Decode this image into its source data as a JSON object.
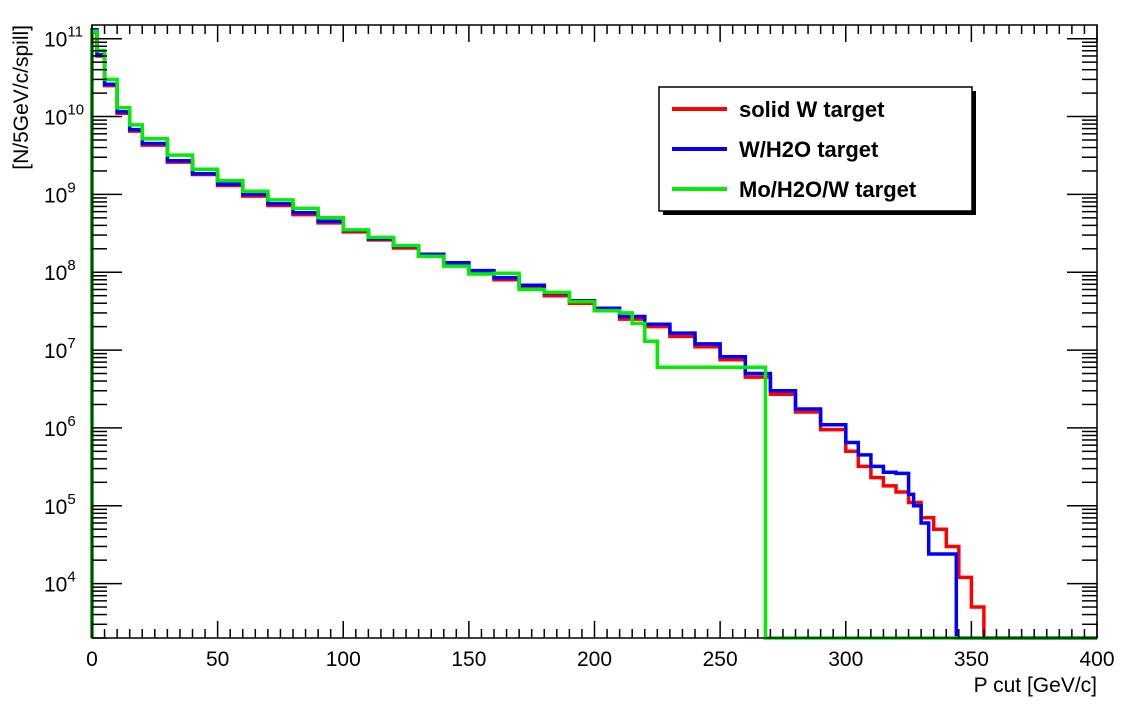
{
  "chart_data": {
    "type": "line",
    "title": "",
    "xlabel": "P cut  [GeV/c]",
    "ylabel": "[N/5GeV/c/spill]",
    "xlim": [
      0,
      400
    ],
    "ylim": [
      2000,
      150000000000
    ],
    "y_scale": "log",
    "grid": false,
    "legend_position": "top-right",
    "x_ticks": [
      0,
      50,
      100,
      150,
      200,
      250,
      300,
      350,
      400
    ],
    "x_tick_labels": [
      "0",
      "50",
      "100",
      "150",
      "200",
      "250",
      "300",
      "350",
      "400"
    ],
    "y_ticks": [
      10000,
      100000,
      1000000,
      10000000,
      100000000,
      1000000000,
      10000000000,
      100000000000
    ],
    "y_tick_labels": [
      {
        "base": "10",
        "exp": "4"
      },
      {
        "base": "10",
        "exp": "5"
      },
      {
        "base": "10",
        "exp": "6"
      },
      {
        "base": "10",
        "exp": "7"
      },
      {
        "base": "10",
        "exp": "8"
      },
      {
        "base": "10",
        "exp": "9"
      },
      {
        "base": "10",
        "exp": "10"
      },
      {
        "base": "10",
        "exp": "11"
      }
    ],
    "series": [
      {
        "name": "solid W target",
        "color": "#ff0000",
        "step": true,
        "x": [
          0,
          2,
          5,
          10,
          15,
          20,
          30,
          40,
          50,
          60,
          70,
          80,
          90,
          100,
          110,
          120,
          130,
          140,
          150,
          160,
          170,
          180,
          190,
          200,
          210,
          220,
          230,
          240,
          250,
          260,
          270,
          280,
          290,
          300,
          305,
          310,
          315,
          320,
          325,
          330,
          335,
          340,
          345,
          350,
          355
        ],
        "y": [
          120000000000,
          60000000000,
          25000000000,
          11000000000,
          6500000000,
          4300000000,
          2600000000,
          1800000000,
          1300000000,
          950000000,
          720000000,
          550000000,
          430000000,
          330000000,
          260000000,
          205000000,
          160000000,
          125000000,
          100000000,
          80000000,
          64000000,
          50000000,
          40000000,
          32000000,
          25000000,
          20000000,
          15000000,
          11000000,
          7500000,
          4500000,
          2700000,
          1600000,
          950000,
          500000,
          320000,
          230000,
          180000,
          150000,
          110000,
          70000,
          50000,
          30000,
          12000,
          5000,
          2000
        ]
      },
      {
        "name": "W/H2O target",
        "color": "#0000ff",
        "step": true,
        "x": [
          0,
          2,
          5,
          10,
          15,
          20,
          30,
          40,
          50,
          60,
          70,
          80,
          90,
          100,
          110,
          120,
          130,
          140,
          150,
          160,
          170,
          180,
          190,
          200,
          210,
          220,
          230,
          240,
          250,
          260,
          270,
          280,
          290,
          300,
          305,
          310,
          315,
          320,
          325,
          327,
          330,
          333,
          343,
          344
        ],
        "y": [
          130000000000,
          62000000000,
          26000000000,
          11500000000,
          6800000000,
          4500000000,
          2700000000,
          1850000000,
          1350000000,
          1000000000,
          760000000,
          580000000,
          450000000,
          345000000,
          270000000,
          215000000,
          170000000,
          132000000,
          105000000,
          85000000,
          68000000,
          54000000,
          43000000,
          34500000,
          27000000,
          21500000,
          16500000,
          12000000,
          8200000,
          5000000,
          3000000,
          1750000,
          1100000,
          650000,
          450000,
          320000,
          270000,
          260000,
          140000,
          100000,
          60000,
          24000,
          24000,
          2000
        ]
      },
      {
        "name": "Mo/H2O/W target",
        "color": "#00ee00",
        "step": true,
        "x": [
          0,
          2,
          5,
          10,
          15,
          20,
          30,
          40,
          50,
          60,
          70,
          80,
          90,
          100,
          110,
          120,
          130,
          140,
          150,
          160,
          170,
          180,
          190,
          200,
          210,
          215,
          220,
          225,
          267,
          268
        ],
        "y": [
          125000000000,
          70000000000,
          30000000000,
          13000000000,
          7800000000,
          5200000000,
          3200000000,
          2100000000,
          1500000000,
          1100000000,
          850000000,
          660000000,
          500000000,
          350000000,
          280000000,
          220000000,
          160000000,
          120000000,
          95000000,
          97000000,
          60000000,
          55000000,
          42000000,
          32000000,
          30000000,
          22000000,
          13000000,
          6000000,
          6000000,
          2000
        ]
      }
    ]
  }
}
